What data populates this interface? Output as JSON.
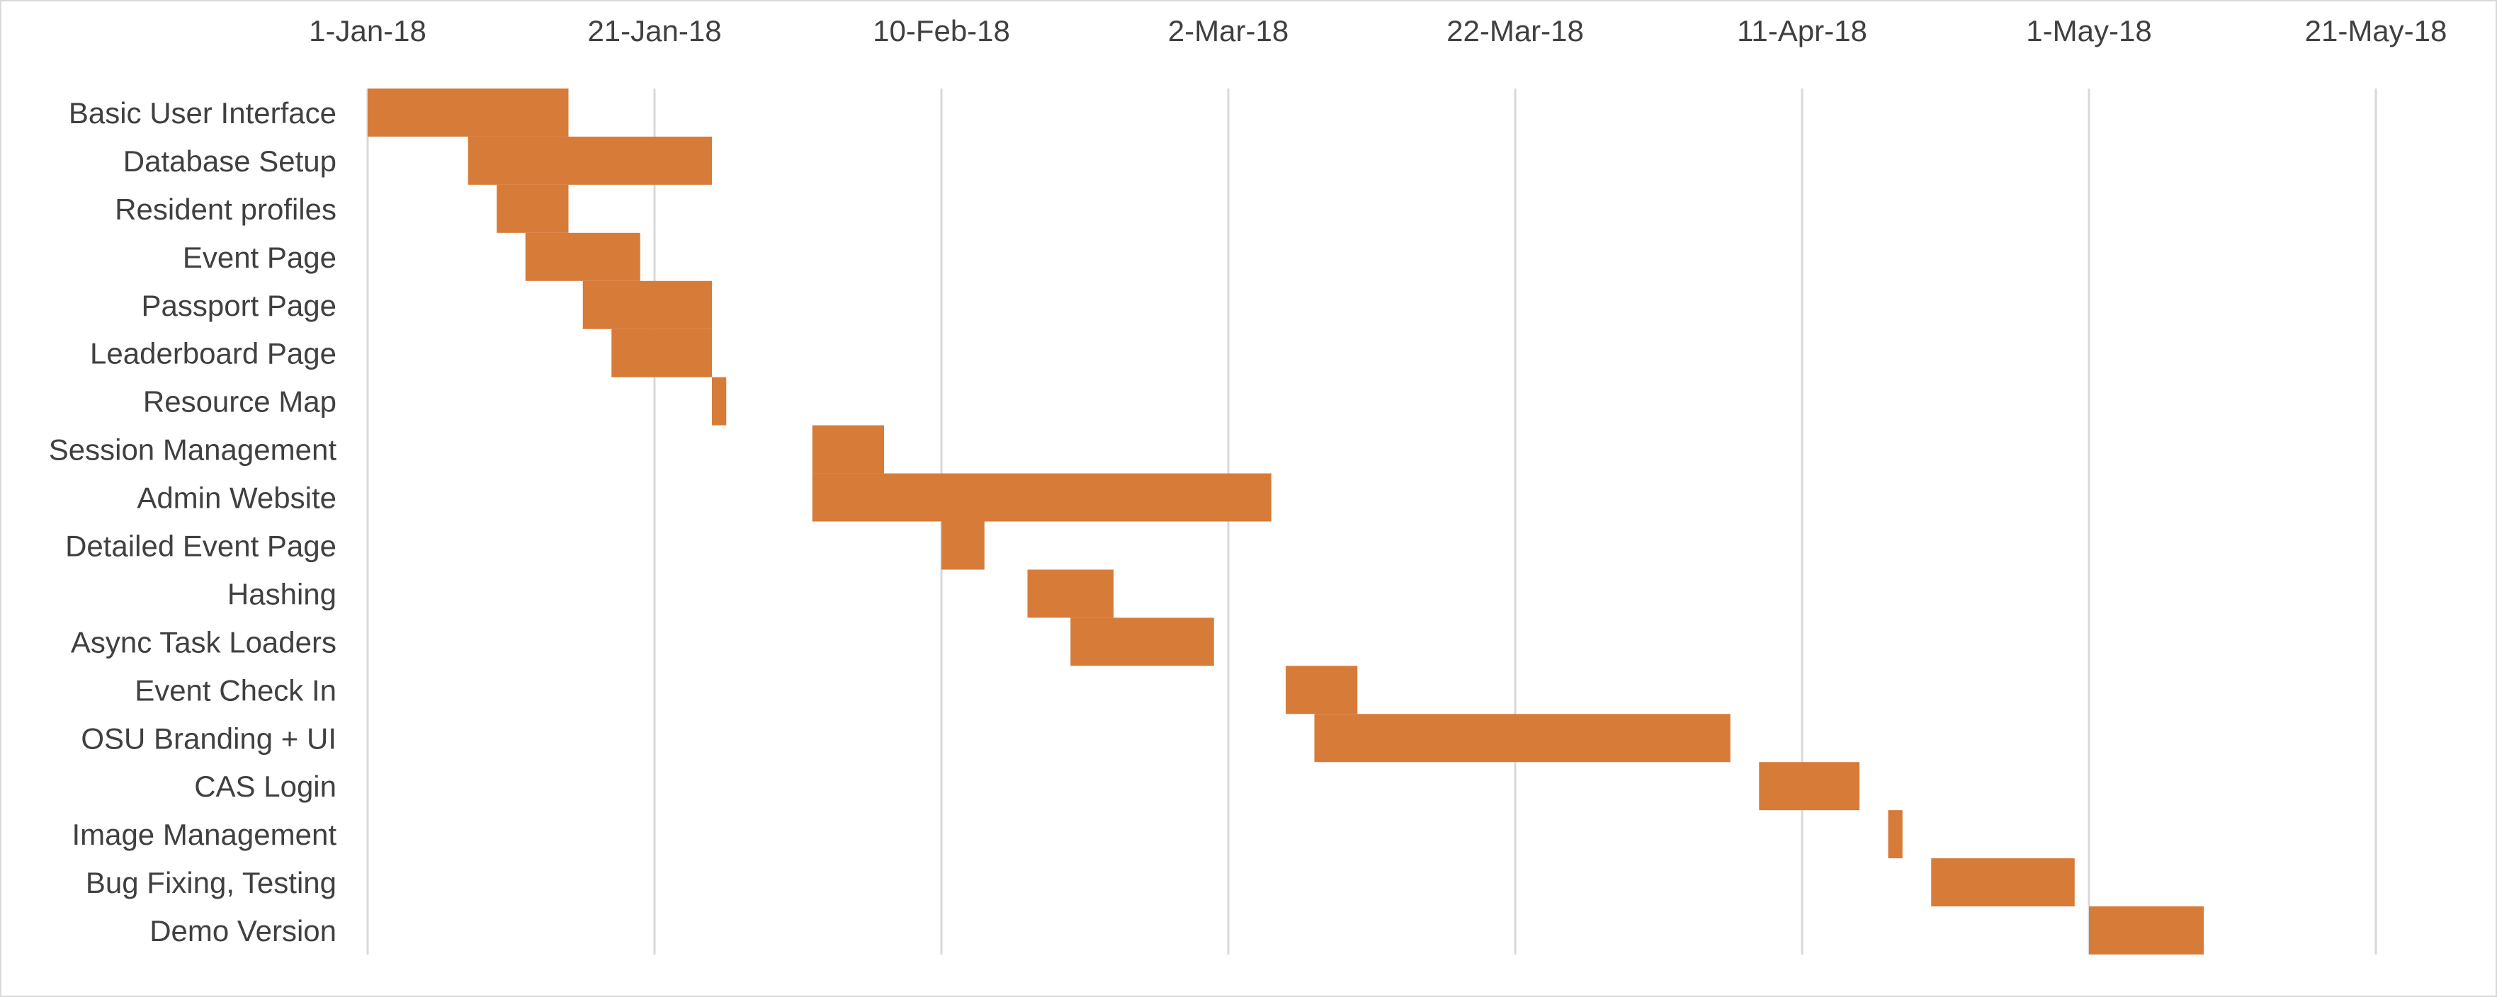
{
  "chart_data": {
    "type": "gantt",
    "title": "",
    "xlabel": "",
    "ylabel": "",
    "grid": "vertical",
    "legend": "none",
    "x_axis_position": "top",
    "bar_color": "#d77b39",
    "grid_color": "#d9d9d9",
    "text_color": "#404040",
    "xlim": [
      "2018-01-01",
      "2018-05-21"
    ],
    "x_ticks": [
      {
        "date": "2018-01-01",
        "label": "1-Jan-18"
      },
      {
        "date": "2018-01-21",
        "label": "21-Jan-18"
      },
      {
        "date": "2018-02-10",
        "label": "10-Feb-18"
      },
      {
        "date": "2018-03-02",
        "label": "2-Mar-18"
      },
      {
        "date": "2018-03-22",
        "label": "22-Mar-18"
      },
      {
        "date": "2018-04-11",
        "label": "11-Apr-18"
      },
      {
        "date": "2018-05-01",
        "label": "1-May-18"
      },
      {
        "date": "2018-05-21",
        "label": "21-May-18"
      }
    ],
    "tasks": [
      {
        "name": "Basic User Interface",
        "start": "2018-01-01",
        "end": "2018-01-15"
      },
      {
        "name": "Database Setup",
        "start": "2018-01-08",
        "end": "2018-01-25"
      },
      {
        "name": "Resident profiles",
        "start": "2018-01-10",
        "end": "2018-01-15"
      },
      {
        "name": "Event Page",
        "start": "2018-01-12",
        "end": "2018-01-20"
      },
      {
        "name": "Passport Page",
        "start": "2018-01-16",
        "end": "2018-01-25"
      },
      {
        "name": "Leaderboard Page",
        "start": "2018-01-18",
        "end": "2018-01-25"
      },
      {
        "name": "Resource Map",
        "start": "2018-01-25",
        "end": "2018-01-26"
      },
      {
        "name": "Session Management",
        "start": "2018-02-01",
        "end": "2018-02-06"
      },
      {
        "name": "Admin Website",
        "start": "2018-02-01",
        "end": "2018-03-05"
      },
      {
        "name": "Detailed Event Page",
        "start": "2018-02-10",
        "end": "2018-02-13"
      },
      {
        "name": "Hashing",
        "start": "2018-02-16",
        "end": "2018-02-22"
      },
      {
        "name": "Async Task Loaders",
        "start": "2018-02-19",
        "end": "2018-03-01"
      },
      {
        "name": "Event Check In",
        "start": "2018-03-06",
        "end": "2018-03-11"
      },
      {
        "name": "OSU Branding + UI",
        "start": "2018-03-08",
        "end": "2018-04-06"
      },
      {
        "name": "CAS Login",
        "start": "2018-04-08",
        "end": "2018-04-15"
      },
      {
        "name": "Image Management",
        "start": "2018-04-17",
        "end": "2018-04-18"
      },
      {
        "name": "Bug Fixing, Testing",
        "start": "2018-04-20",
        "end": "2018-04-30"
      },
      {
        "name": "Demo Version",
        "start": "2018-05-01",
        "end": "2018-05-09"
      }
    ]
  }
}
